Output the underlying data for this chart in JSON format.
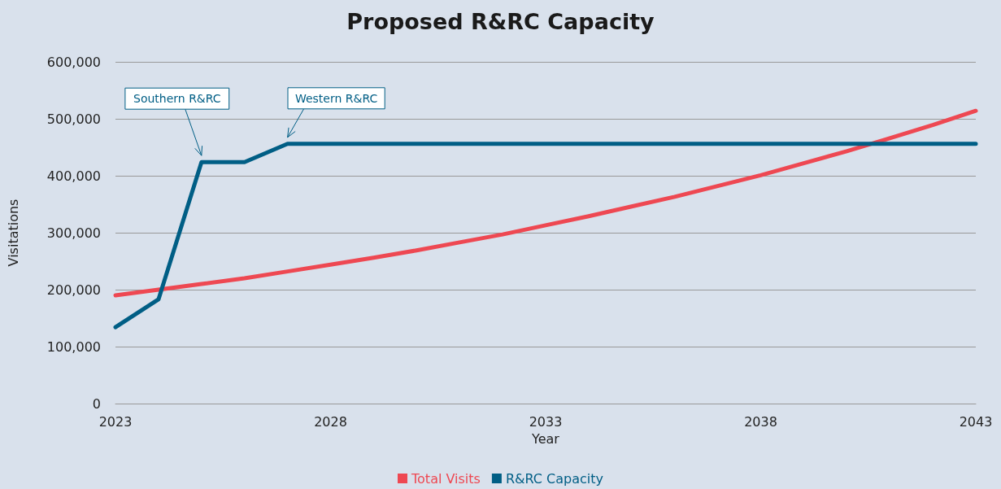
{
  "chart_data": {
    "type": "line",
    "title": "Proposed R&RC Capacity",
    "xlabel": "Year",
    "ylabel": "Visitations",
    "x": [
      2023,
      2024,
      2025,
      2026,
      2027,
      2028,
      2029,
      2030,
      2031,
      2032,
      2033,
      2034,
      2035,
      2036,
      2037,
      2038,
      2039,
      2040,
      2041,
      2042,
      2043
    ],
    "series": [
      {
        "name": "Total Visits",
        "color": "#ee4852",
        "values": [
          190000,
          200000,
          210000,
          220000,
          232000,
          244000,
          256000,
          269000,
          283000,
          297000,
          313000,
          329000,
          346000,
          363000,
          382000,
          401000,
          422000,
          443000,
          466000,
          489000,
          514000
        ]
      },
      {
        "name": "R&RC Capacity",
        "color": "#005e85",
        "values": [
          134000,
          183000,
          424000,
          424000,
          456000,
          456000,
          456000,
          456000,
          456000,
          456000,
          456000,
          456000,
          456000,
          456000,
          456000,
          456000,
          456000,
          456000,
          456000,
          456000,
          456000
        ]
      }
    ],
    "xlim": [
      2023,
      2043
    ],
    "xticks": [
      2023,
      2028,
      2033,
      2038,
      2043
    ],
    "ylim": [
      0,
      600000
    ],
    "yticks": [
      0,
      {
        "value": 100000,
        "label": "100,000"
      },
      {
        "value": 200000,
        "label": "200,000"
      },
      {
        "value": 300000,
        "label": "300,000"
      },
      {
        "value": 400000,
        "label": "400,000"
      },
      {
        "value": 500000,
        "label": "500,000"
      },
      {
        "value": 600000,
        "label": "600,000"
      }
    ],
    "annotations": [
      {
        "text": "Southern R&RC",
        "x": 2025,
        "y": 424000
      },
      {
        "text": "Western R&RC",
        "x": 2027,
        "y": 456000
      }
    ],
    "grid": "y",
    "legend": "bottom",
    "marker": "none",
    "line_style": "solid"
  }
}
